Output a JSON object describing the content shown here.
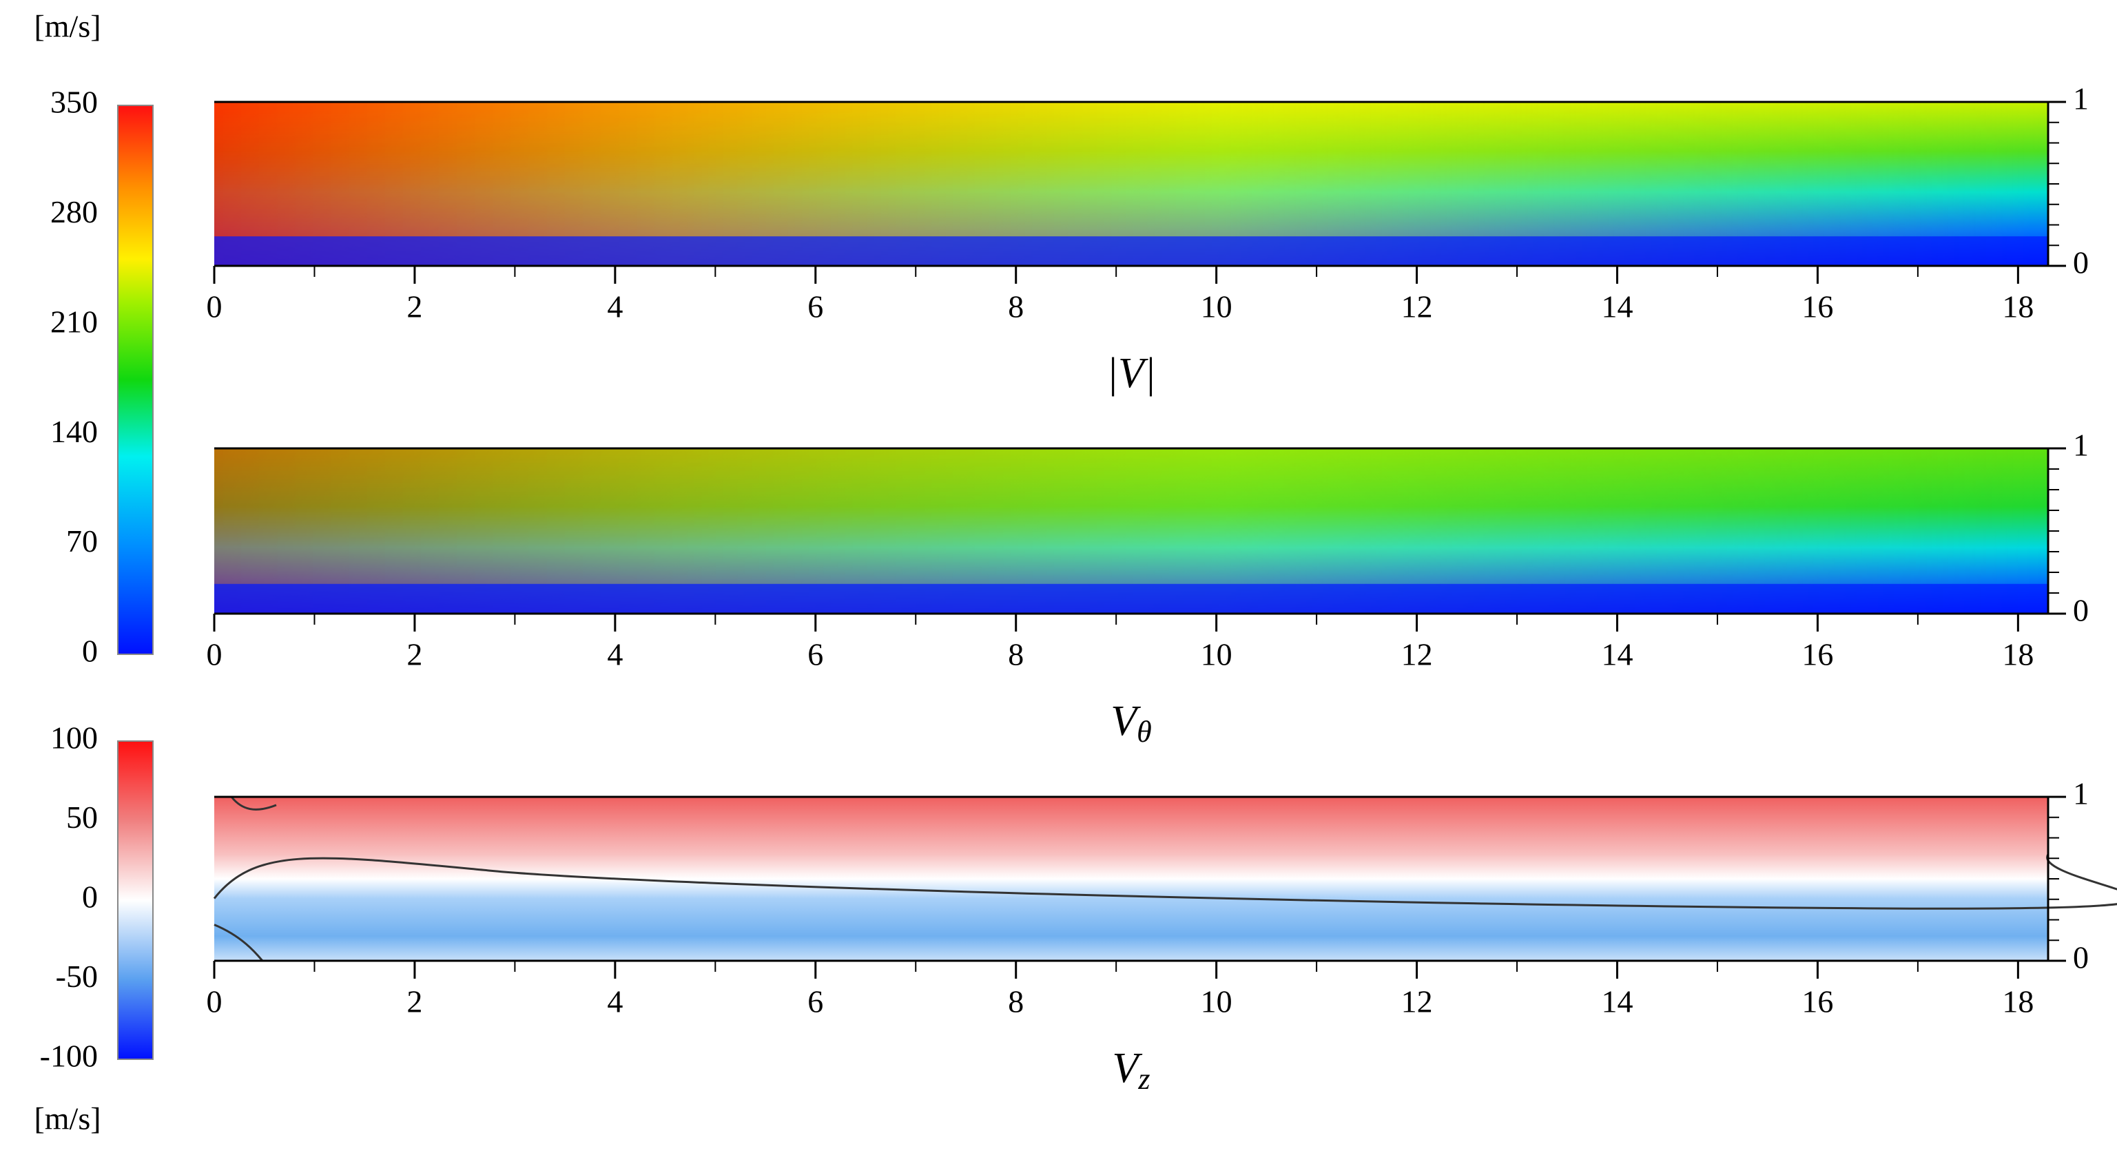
{
  "colorbars": [
    {
      "unit": "[m/s]",
      "lim": [
        0,
        350
      ],
      "ticks": [
        0,
        70,
        140,
        210,
        280,
        350
      ]
    },
    {
      "unit": "[m/s]",
      "lim": [
        -100,
        100
      ],
      "ticks": [
        -100,
        -50,
        0,
        50,
        100
      ]
    }
  ],
  "chart_data": [
    {
      "type": "contour",
      "title": {
        "main": "|V|"
      },
      "field": "magnitude",
      "xlim": [
        0,
        18.3
      ],
      "xticks": [
        0,
        2,
        4,
        6,
        8,
        10,
        12,
        14,
        16,
        18
      ],
      "xminorticks": [
        1,
        3,
        5,
        7,
        9,
        11,
        13,
        15,
        17
      ],
      "ylim": [
        0,
        1
      ],
      "yticks": [
        0,
        1
      ],
      "yminorticks": [
        0.125,
        0.25,
        0.375,
        0.5,
        0.625,
        0.75,
        0.875
      ]
    },
    {
      "type": "contour",
      "title": {
        "main": "V",
        "sub": "θ"
      },
      "field": "swirl",
      "xlim": [
        0,
        18.3
      ],
      "xticks": [
        0,
        2,
        4,
        6,
        8,
        10,
        12,
        14,
        16,
        18
      ],
      "xminorticks": [
        1,
        3,
        5,
        7,
        9,
        11,
        13,
        15,
        17
      ],
      "ylim": [
        0,
        1
      ],
      "yticks": [
        0,
        1
      ],
      "yminorticks": [
        0.125,
        0.25,
        0.375,
        0.5,
        0.625,
        0.75,
        0.875
      ]
    },
    {
      "type": "contour",
      "title": {
        "main": "V",
        "sub": "z"
      },
      "field": "axial",
      "xlim": [
        0,
        18.3
      ],
      "xticks": [
        0,
        2,
        4,
        6,
        8,
        10,
        12,
        14,
        16,
        18
      ],
      "xminorticks": [
        1,
        3,
        5,
        7,
        9,
        11,
        13,
        15,
        17
      ],
      "ylim": [
        0,
        1
      ],
      "yticks": [
        0,
        1
      ],
      "yminorticks": [
        0.125,
        0.25,
        0.375,
        0.5,
        0.625,
        0.75,
        0.875
      ]
    }
  ]
}
